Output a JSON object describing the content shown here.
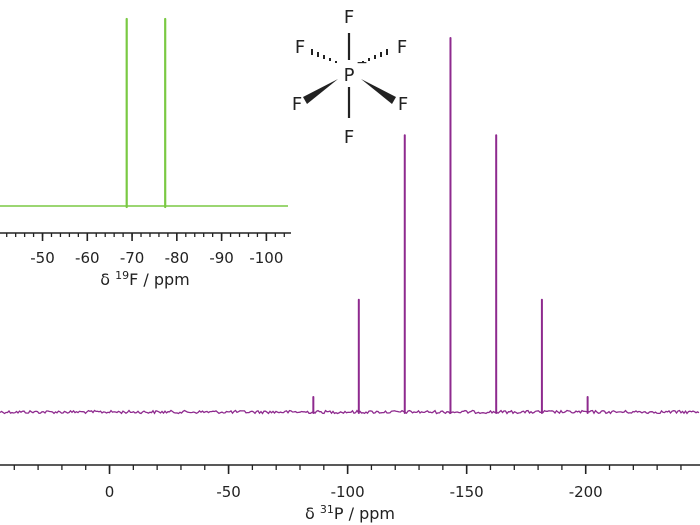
{
  "chart_data": [
    {
      "type": "line",
      "nucleus": "31P",
      "xlabel": {
        "delta": "δ ",
        "sup": "31",
        "rest": "P / ppm"
      },
      "xlim": [
        46,
        -248
      ],
      "x_ticks": [
        0,
        -50,
        -100,
        -150,
        -200
      ],
      "tick_labels": [
        "0",
        "-50",
        "-100",
        "-150",
        "-200"
      ],
      "baseline": 0,
      "ylim": [
        0,
        1
      ],
      "peaks": [
        {
          "x": -85.6,
          "y": 0.04
        },
        {
          "x": -104.7,
          "y": 0.3
        },
        {
          "x": -124.0,
          "y": 0.74
        },
        {
          "x": -143.2,
          "y": 1.0
        },
        {
          "x": -162.4,
          "y": 0.74
        },
        {
          "x": -181.6,
          "y": 0.3
        },
        {
          "x": -200.8,
          "y": 0.04
        }
      ],
      "color": "#8e2a8e"
    },
    {
      "type": "line",
      "nucleus": "19F",
      "inset": true,
      "xlabel": {
        "delta": "δ ",
        "sup": "19",
        "rest": "F / ppm"
      },
      "xlim": [
        -40.5,
        -105.5
      ],
      "x_ticks": [
        -50,
        -60,
        -70,
        -80,
        -90,
        -100
      ],
      "tick_labels": [
        "-50",
        "-60",
        "-70",
        "-80",
        "-90",
        "-100"
      ],
      "baseline": 0,
      "ylim": [
        0,
        1
      ],
      "peaks": [
        {
          "x": -68.8,
          "y": 1.0
        },
        {
          "x": -77.4,
          "y": 1.0
        }
      ],
      "color": "#7ac943"
    }
  ],
  "structure": {
    "center": "P",
    "charge": "−",
    "ligands": [
      "F",
      "F",
      "F",
      "F",
      "F",
      "F"
    ]
  }
}
